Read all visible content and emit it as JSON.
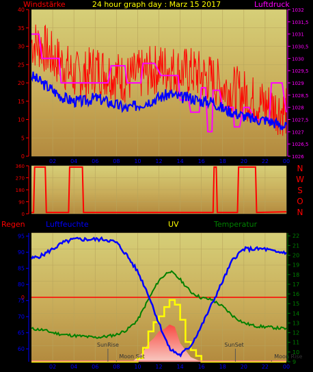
{
  "chart_data": [
    {
      "type": "line",
      "title": "24 hour graph day : Marz 15 2017",
      "left_axis_title": "Windstärke",
      "right_axis_title": "Luftdruck",
      "x_ticks": [
        "02",
        "04",
        "06",
        "08",
        "10",
        "12",
        "14",
        "16",
        "18",
        "20",
        "22",
        "00"
      ],
      "left_ticks": [
        "0",
        "5",
        "10",
        "15",
        "20",
        "25",
        "30",
        "35",
        "40"
      ],
      "left_range": [
        0,
        40
      ],
      "right_ticks": [
        "1026",
        "1026,5",
        "1027",
        "1027,5",
        "1028",
        "1028,5",
        "1029",
        "1029,5",
        "1030",
        "1030,5",
        "1031",
        "1031,5",
        "1032"
      ],
      "right_range": [
        1026,
        1032
      ],
      "grid": true,
      "colors": {
        "gust": "#ff0000",
        "wind": "#0000ff",
        "pressure": "#ff00ff",
        "left_axis": "#ff0000",
        "right_axis": "#ff00ff",
        "title": "#ffff00"
      },
      "series": [
        {
          "key": "wind",
          "x": [
            0,
            1,
            2,
            3,
            4,
            5,
            6,
            7,
            8,
            9,
            10,
            11,
            12,
            13,
            14,
            15,
            16,
            17,
            18,
            19,
            20,
            21,
            22,
            23,
            24
          ],
          "values": [
            22,
            20,
            18,
            16,
            15,
            15,
            16,
            15,
            14,
            13,
            14,
            15,
            16,
            17,
            16,
            16,
            15,
            15,
            13,
            12,
            11,
            10,
            10,
            9,
            8
          ]
        },
        {
          "key": "gust",
          "x": [
            0,
            1,
            2,
            3,
            4,
            5,
            6,
            7,
            8,
            9,
            10,
            11,
            12,
            13,
            14,
            15,
            16,
            17,
            18,
            19,
            20,
            21,
            22,
            23,
            24
          ],
          "values": [
            31,
            30,
            27,
            25,
            22,
            22,
            24,
            23,
            22,
            21,
            22,
            23,
            24,
            24,
            23,
            23,
            22,
            21,
            19,
            18,
            17,
            15,
            14,
            13,
            12
          ]
        },
        {
          "key": "pressure",
          "x": [
            0,
            0.7,
            1,
            2.6,
            2.8,
            7.2,
            7.5,
            8.8,
            9,
            10.3,
            10.5,
            11.6,
            12.2,
            13.8,
            14,
            14.8,
            15,
            15.8,
            16,
            16.4,
            16.6,
            17,
            17.1,
            17.7,
            18,
            19,
            19.1,
            19.6,
            20,
            20.5,
            21,
            22.4,
            22.6,
            23.6,
            24
          ],
          "values": [
            1031,
            1031,
            1030,
            1030,
            1029,
            1029,
            1029.7,
            1029.7,
            1029,
            1029,
            1029.8,
            1029.8,
            1029.3,
            1029.3,
            1028.3,
            1028.3,
            1027.8,
            1027.8,
            1028.8,
            1028.8,
            1027,
            1027,
            1028.7,
            1028.7,
            1028,
            1028,
            1027.2,
            1027.2,
            1028,
            1028,
            1027.5,
            1027.5,
            1029,
            1029,
            1027.8
          ]
        }
      ]
    },
    {
      "type": "line",
      "title": "",
      "left_ticks": [
        "0",
        "90",
        "180",
        "270",
        "360"
      ],
      "left_range": [
        0,
        360
      ],
      "direction_labels": [
        "N",
        "W",
        "S",
        "O",
        "N"
      ],
      "colors": {
        "direction": "#ff0000",
        "labels": "#ff0000"
      },
      "series": [
        {
          "key": "direction",
          "x": [
            0,
            0.2,
            0.3,
            1.3,
            1.4,
            3.5,
            3.6,
            4.8,
            4.9,
            6.1,
            6.2,
            17.1,
            17.2,
            17.4,
            17.5,
            19.4,
            19.5,
            21.1,
            21.2,
            24
          ],
          "values": [
            10,
            10,
            350,
            350,
            10,
            10,
            350,
            350,
            10,
            10,
            10,
            10,
            350,
            350,
            10,
            10,
            350,
            350,
            10,
            15
          ]
        }
      ]
    },
    {
      "type": "line",
      "title": "",
      "legend": [
        "Regen",
        "Luftfeuchte",
        "UV",
        "Temperatur"
      ],
      "left_ticks": [
        "60",
        "65",
        "70",
        "75",
        "80",
        "85",
        "90",
        "95"
      ],
      "left_range": [
        56,
        96
      ],
      "rain_zero_label": "0",
      "right_ticks": [
        "9",
        "10",
        "11",
        "12",
        "13",
        "14",
        "15",
        "16",
        "17",
        "18",
        "19",
        "20",
        "21",
        "22"
      ],
      "right_range": [
        9,
        22.3
      ],
      "x_ticks": [
        "02",
        "04",
        "06",
        "08",
        "10",
        "12",
        "14",
        "16",
        "18",
        "20",
        "22",
        "00"
      ],
      "annotations": [
        {
          "label": "SunRise",
          "x": 7.2
        },
        {
          "label": "SunSet",
          "x": 19.2
        },
        {
          "label": "Moon Set",
          "x": 8.0
        },
        {
          "label": "Moon Rise",
          "x": 22.6
        }
      ],
      "colors": {
        "humidity": "#0000ff",
        "temperature": "#008000",
        "uv": "#ffff00",
        "solar": "#ff3030",
        "rain": "#ff0000",
        "regen": "#ff0000",
        "luftfeuchte": "#0000ff",
        "uv_label": "#ffff00",
        "temperatur": "#008000"
      },
      "series": [
        {
          "key": "humidity",
          "unit": "%",
          "x": [
            0,
            1,
            2,
            3,
            4,
            5,
            6,
            7,
            8,
            9,
            10,
            11,
            12,
            13,
            14,
            15,
            16,
            17,
            18,
            19,
            20,
            21,
            22,
            23,
            24
          ],
          "values": [
            88,
            89,
            91,
            93,
            94,
            94,
            94,
            94,
            93,
            89,
            84,
            77,
            68,
            60,
            58,
            61,
            67,
            74,
            81,
            88,
            91,
            91,
            91,
            90,
            90
          ]
        },
        {
          "key": "temperature",
          "unit": "°C",
          "x": [
            0,
            1,
            2,
            3,
            4,
            5,
            6,
            7,
            8,
            9,
            10,
            11,
            12,
            13,
            14,
            15,
            16,
            17,
            18,
            19,
            20,
            21,
            22,
            23,
            24
          ],
          "values": [
            12.4,
            12.3,
            12,
            11.8,
            11.7,
            11.6,
            11.5,
            11.6,
            11.8,
            12.3,
            13.3,
            15.4,
            17.4,
            18.4,
            17.5,
            16.2,
            15.6,
            15.4,
            14.7,
            13.7,
            13,
            12.7,
            12.6,
            12.5,
            12.4
          ]
        },
        {
          "key": "uv",
          "x": [
            0,
            9.5,
            10,
            10.5,
            11,
            11.5,
            12,
            12.5,
            13,
            13.5,
            14,
            14.5,
            15,
            15.5,
            16,
            24
          ],
          "values": [
            0,
            0,
            0.3,
            1.2,
            2.6,
            3.4,
            3.9,
            4.7,
            5.3,
            4.9,
            3.6,
            1.7,
            1,
            0.5,
            0,
            0
          ]
        },
        {
          "key": "solar",
          "x": [
            0,
            9.5,
            10.5,
            11,
            11.5,
            12,
            12.5,
            13,
            13.5,
            14,
            14.5,
            15,
            16,
            24
          ],
          "values": [
            0,
            0,
            0.8,
            1.6,
            2,
            2.6,
            2.8,
            3.2,
            3,
            1.6,
            1,
            0.4,
            0,
            0
          ]
        }
      ]
    }
  ]
}
